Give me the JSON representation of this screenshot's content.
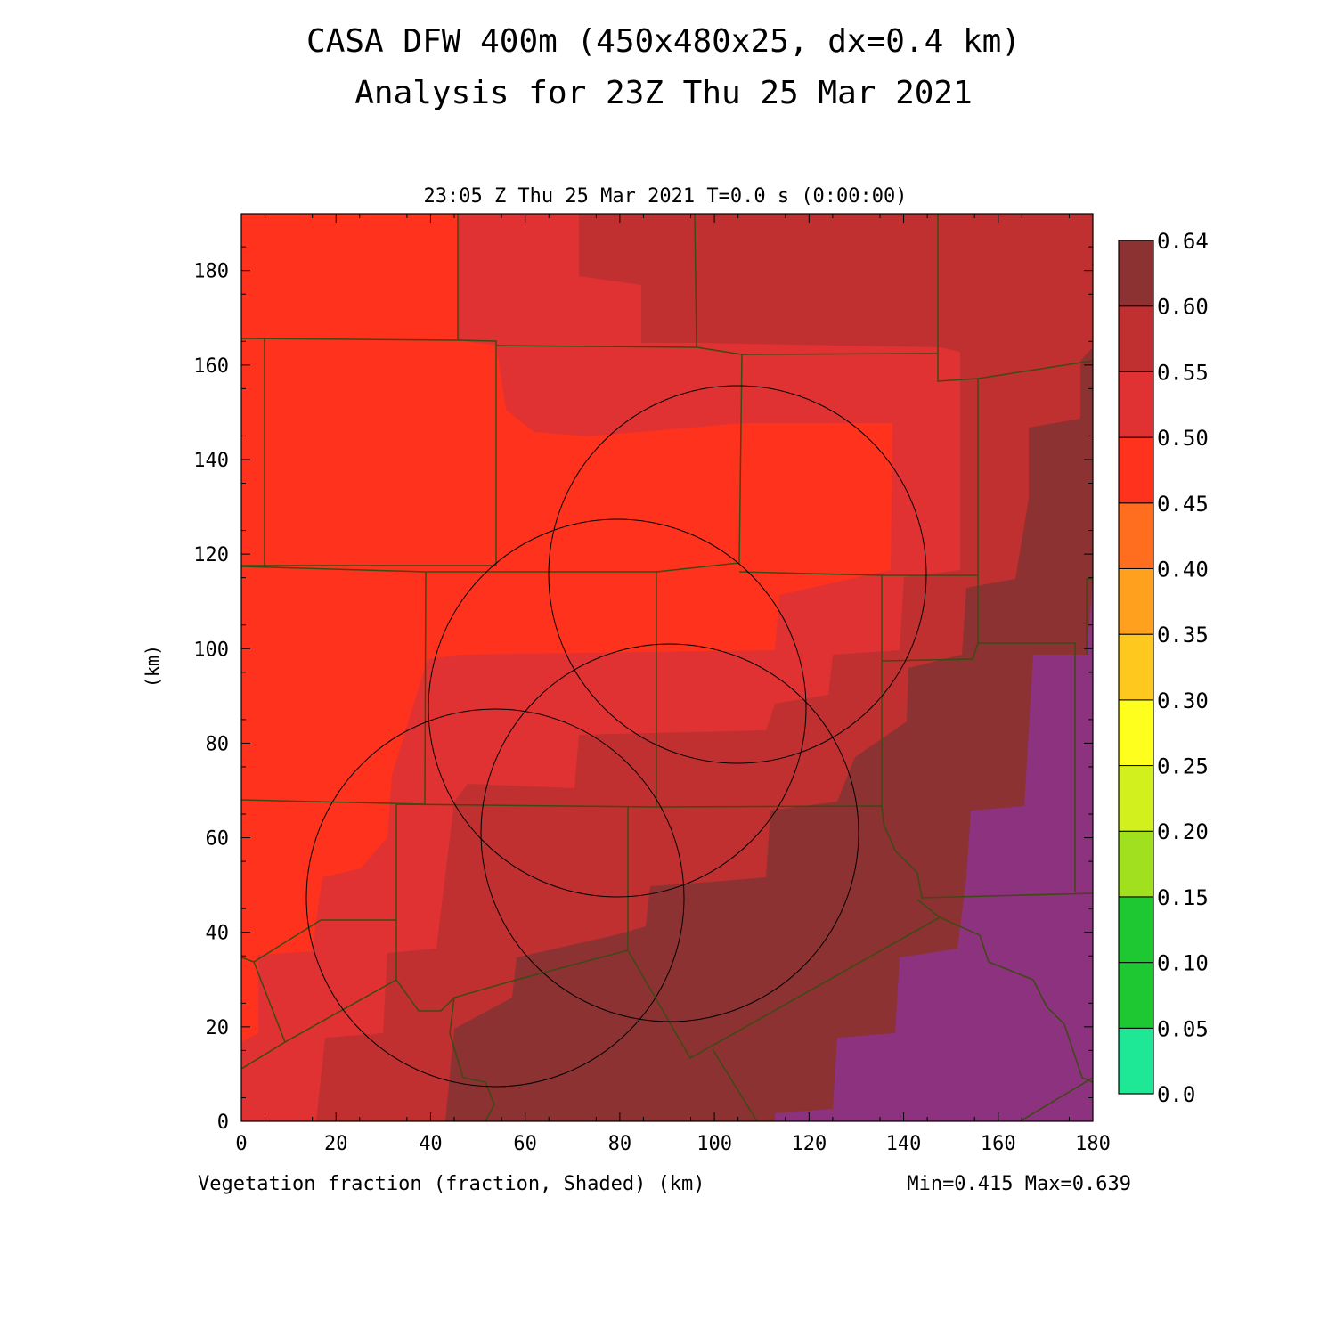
{
  "header": {
    "title": "CASA DFW 400m (450x480x25, dx=0.4 km)",
    "subtitle": "Analysis for 23Z Thu 25 Mar 2021"
  },
  "plot": {
    "time_label": "23:05 Z Thu 25 Mar 2021   T=0.0 s (0:00:00)",
    "x_label": "Vegetation fraction (fraction, Shaded)  (km)",
    "y_label": "(km)",
    "stats": "Min=0.415 Max=0.639",
    "x_ticks": [
      "0",
      "20",
      "40",
      "60",
      "80",
      "100",
      "120",
      "140",
      "160",
      "180"
    ],
    "y_ticks": [
      "0",
      "20",
      "40",
      "60",
      "80",
      "100",
      "120",
      "140",
      "160",
      "180"
    ],
    "x_range": [
      0,
      180
    ],
    "y_range": [
      0,
      192
    ]
  },
  "colorbar": {
    "labels": [
      "0.0",
      "0.05",
      "0.10",
      "0.15",
      "0.20",
      "0.25",
      "0.30",
      "0.35",
      "0.40",
      "0.45",
      "0.50",
      "0.55",
      "0.60",
      "0.64"
    ],
    "colors": [
      "#1ee896",
      "#1ec832",
      "#1ec832",
      "#a0e01e",
      "#d2f01e",
      "#ffff1e",
      "#ffc81e",
      "#ffa01e",
      "#ff6e1e",
      "#ff321e",
      "#e03232",
      "#c03030",
      "#8c3232",
      "#8c327e"
    ]
  },
  "legend_colors": {
    "v40_45": "#ff321e",
    "v45_50": "#e03232",
    "v50_55": "#c03030",
    "v55_60": "#8c3232",
    "v60_64": "#8c327e",
    "county_lines": "#3c4a14",
    "radar_rings": "#000000"
  }
}
